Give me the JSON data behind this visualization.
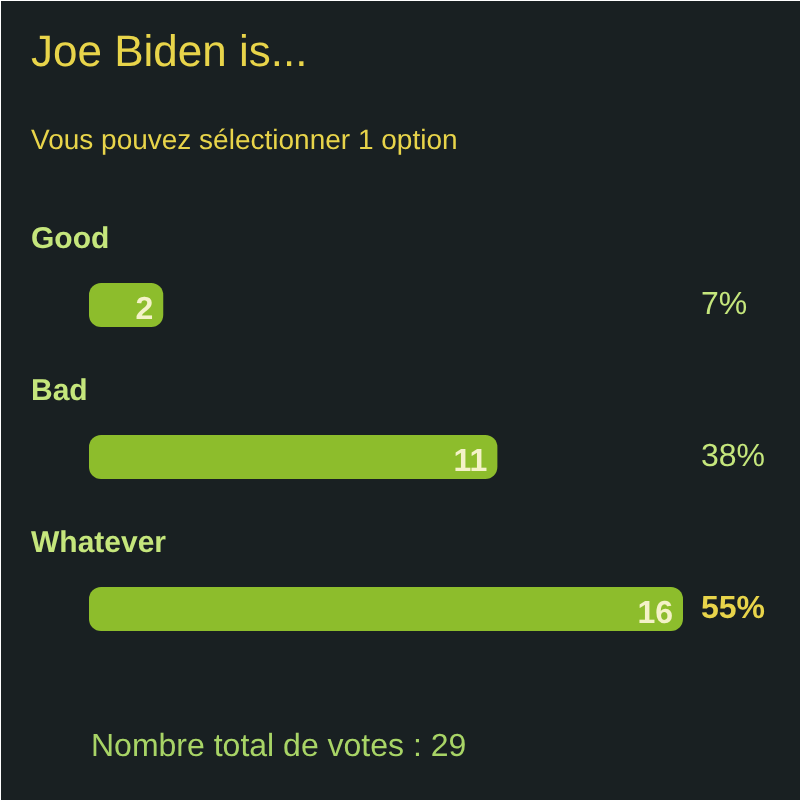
{
  "chart_data": {
    "type": "bar",
    "orientation": "horizontal",
    "title": "Joe Biden is...",
    "subtitle": "Vous pouvez sélectionner 1 option",
    "categories": [
      "Good",
      "Bad",
      "Whatever"
    ],
    "values": [
      2,
      11,
      16
    ],
    "color": "#8dbd2c",
    "data_labels": true,
    "annotations": [
      "7%",
      "38%",
      "55%",
      "Nombre total de votes : 29"
    ]
  }
}
